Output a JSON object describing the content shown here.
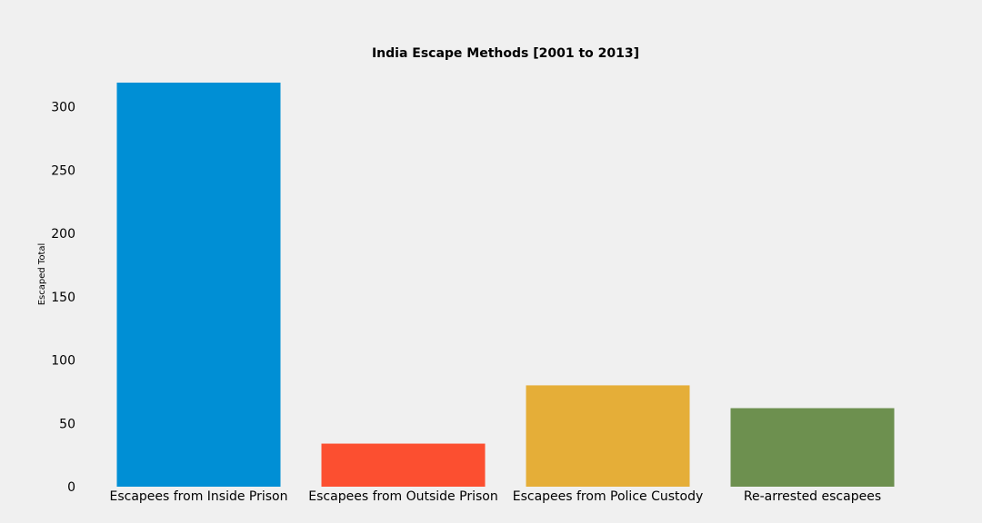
{
  "chart_data": {
    "type": "bar",
    "title": "India Escape Methods [2001 to 2013]",
    "xlabel": "",
    "ylabel": "Escaped Total",
    "categories": [
      "Escapees from Inside Prison",
      "Escapees from Outside Prison",
      "Escapees from Police Custody",
      "Re-arrested escapees"
    ],
    "values": [
      319,
      34,
      80,
      62
    ],
    "colors": [
      "#008fd5",
      "#fc4f30",
      "#e5ae38",
      "#6d904f"
    ],
    "ylim": [
      0,
      319
    ],
    "yticks": [
      0,
      50,
      100,
      150,
      200,
      250,
      300
    ],
    "grid": false,
    "legend": "none"
  }
}
